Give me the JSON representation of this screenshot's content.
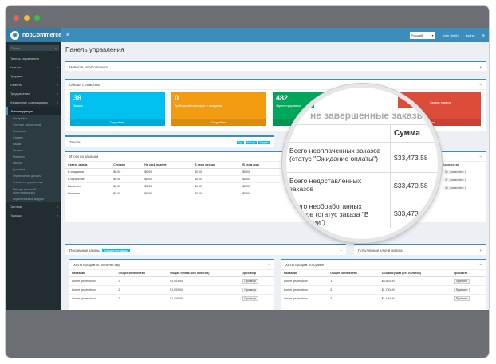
{
  "window": {
    "controls": [
      "#ed5f57",
      "#f5bd2f",
      "#2ec845"
    ]
  },
  "topbar": {
    "brand": "nopCommerce",
    "language": "Русский",
    "user": "John Smith",
    "logout": "Выйти",
    "menu_icon": "≡",
    "settings_icon": "⚙"
  },
  "sidebar": {
    "search_placeholder": "Поиск",
    "items": [
      {
        "label": "Панель управления"
      },
      {
        "label": "Каталог"
      },
      {
        "label": "Продажи"
      },
      {
        "label": "Клиенты"
      },
      {
        "label": "Продвижение"
      },
      {
        "label": "Управление содержимым"
      },
      {
        "label": "Конфигурация"
      }
    ],
    "subitems": [
      {
        "label": "Настройки"
      },
      {
        "label": "Учетные записи email"
      },
      {
        "label": "Магазины"
      },
      {
        "label": "Страны"
      },
      {
        "label": "Языки"
      },
      {
        "label": "Валюты"
      },
      {
        "label": "Платежи"
      },
      {
        "label": "Налоги"
      },
      {
        "label": "Доставка"
      },
      {
        "label": "Ограничение доступа"
      },
      {
        "label": "Элементы управления"
      },
      {
        "label": "Методы внешней аутентификации"
      },
      {
        "label": "Подключаемые модули"
      }
    ],
    "bottom": [
      {
        "label": "Система"
      },
      {
        "label": "Помощь"
      }
    ]
  },
  "page": {
    "title": "Панель управления"
  },
  "news": {
    "title": "Новости NopCommerce"
  },
  "stats": {
    "title": "Общая статистика",
    "cards": [
      {
        "value": "38",
        "label": "Заказы",
        "more": "Подробнее",
        "color": "#00c0ef"
      },
      {
        "value": "0",
        "label": "Требований на возврат в ожидании",
        "more": "Подробнее",
        "color": "#f39c12"
      },
      {
        "value": "482",
        "label": "Зарегистрировано",
        "more": "Подробнее",
        "color": "#00a65a"
      },
      {
        "value": "",
        "label": "Запасы товаров",
        "more": "Подробнее",
        "color": "#dd4b39"
      }
    ]
  },
  "orders": {
    "title": "Заказы",
    "tags": [
      "Год",
      "Месяц",
      "Неделя"
    ]
  },
  "order_totals": {
    "title": "Итоги по заказам",
    "columns": [
      "Статус заказа",
      "Сегодня",
      "На этой неделе",
      "В этом месяце",
      "В этом году"
    ],
    "rows": [
      [
        "В ожидании",
        "$0.00",
        "$0.00",
        "$0.00",
        "$0.00"
      ],
      [
        "В обработке",
        "$0.00",
        "$0.00",
        "$0.00",
        "$0.00"
      ],
      [
        "Выполнен",
        "$0.00",
        "$0.00",
        "$0.00",
        "$0.00"
      ],
      [
        "Отменен",
        "$0.00",
        "$0.00",
        "$0.00",
        "$0.00"
      ]
    ],
    "right_header": "Количество",
    "right_values": [
      "$33,473.58",
      "$33,470.58",
      "$33,473.58"
    ],
    "right_btns": [
      "38 - посмотреть",
      "37 - посмотреть",
      "38 - посмотреть"
    ]
  },
  "magnifier": {
    "header": "не завершенные заказы",
    "col_sum": "Сумма",
    "rows": [
      {
        "label": "Всего неоплаченных заказов (статус \"Ожидание оплаты\")",
        "value": "$33,473.58"
      },
      {
        "label": "Всего недоставленных заказов",
        "value": "$33,470.58"
      },
      {
        "label": "Всего необработанных заказов (статус заказа \"В ожидании\")",
        "value": "$33,473.58"
      }
    ]
  },
  "latest_orders": {
    "title": "Последние заказы",
    "badge": "Показать все заказы"
  },
  "search_keywords": {
    "title": "Популярные ключи поиска"
  },
  "bestsellers_qty": {
    "title": "Хиты продаж по количеству",
    "columns": [
      "Название",
      "Общее количество",
      "Общая сумма (без налогов)",
      "Просмотр"
    ],
    "rows": [
      [
        "Lorem ipsum dolor",
        "3",
        "$3,503.00",
        "Просмотр"
      ],
      [
        "Lorem ipsum dolor",
        "2",
        "$1,000.00",
        "Просмотр"
      ],
      [
        "Lorem ipsum dolor",
        "2",
        "$1,100.00",
        "Просмотр"
      ]
    ]
  },
  "bestsellers_amount": {
    "title": "Хиты продаж по сумме",
    "columns": [
      "Название",
      "Общее количество",
      "Общая сумма (без налогов)",
      "Просмотр"
    ],
    "rows": [
      [
        "Lorem ipsum dolor",
        "1",
        "$3,503.00",
        "Просмотр"
      ],
      [
        "Lorem ipsum dolor",
        "2",
        "$1,750.00",
        "Просмотр"
      ],
      [
        "Lorem ipsum dolor",
        "2",
        "$1,100.00",
        "Просмотр"
      ]
    ]
  }
}
